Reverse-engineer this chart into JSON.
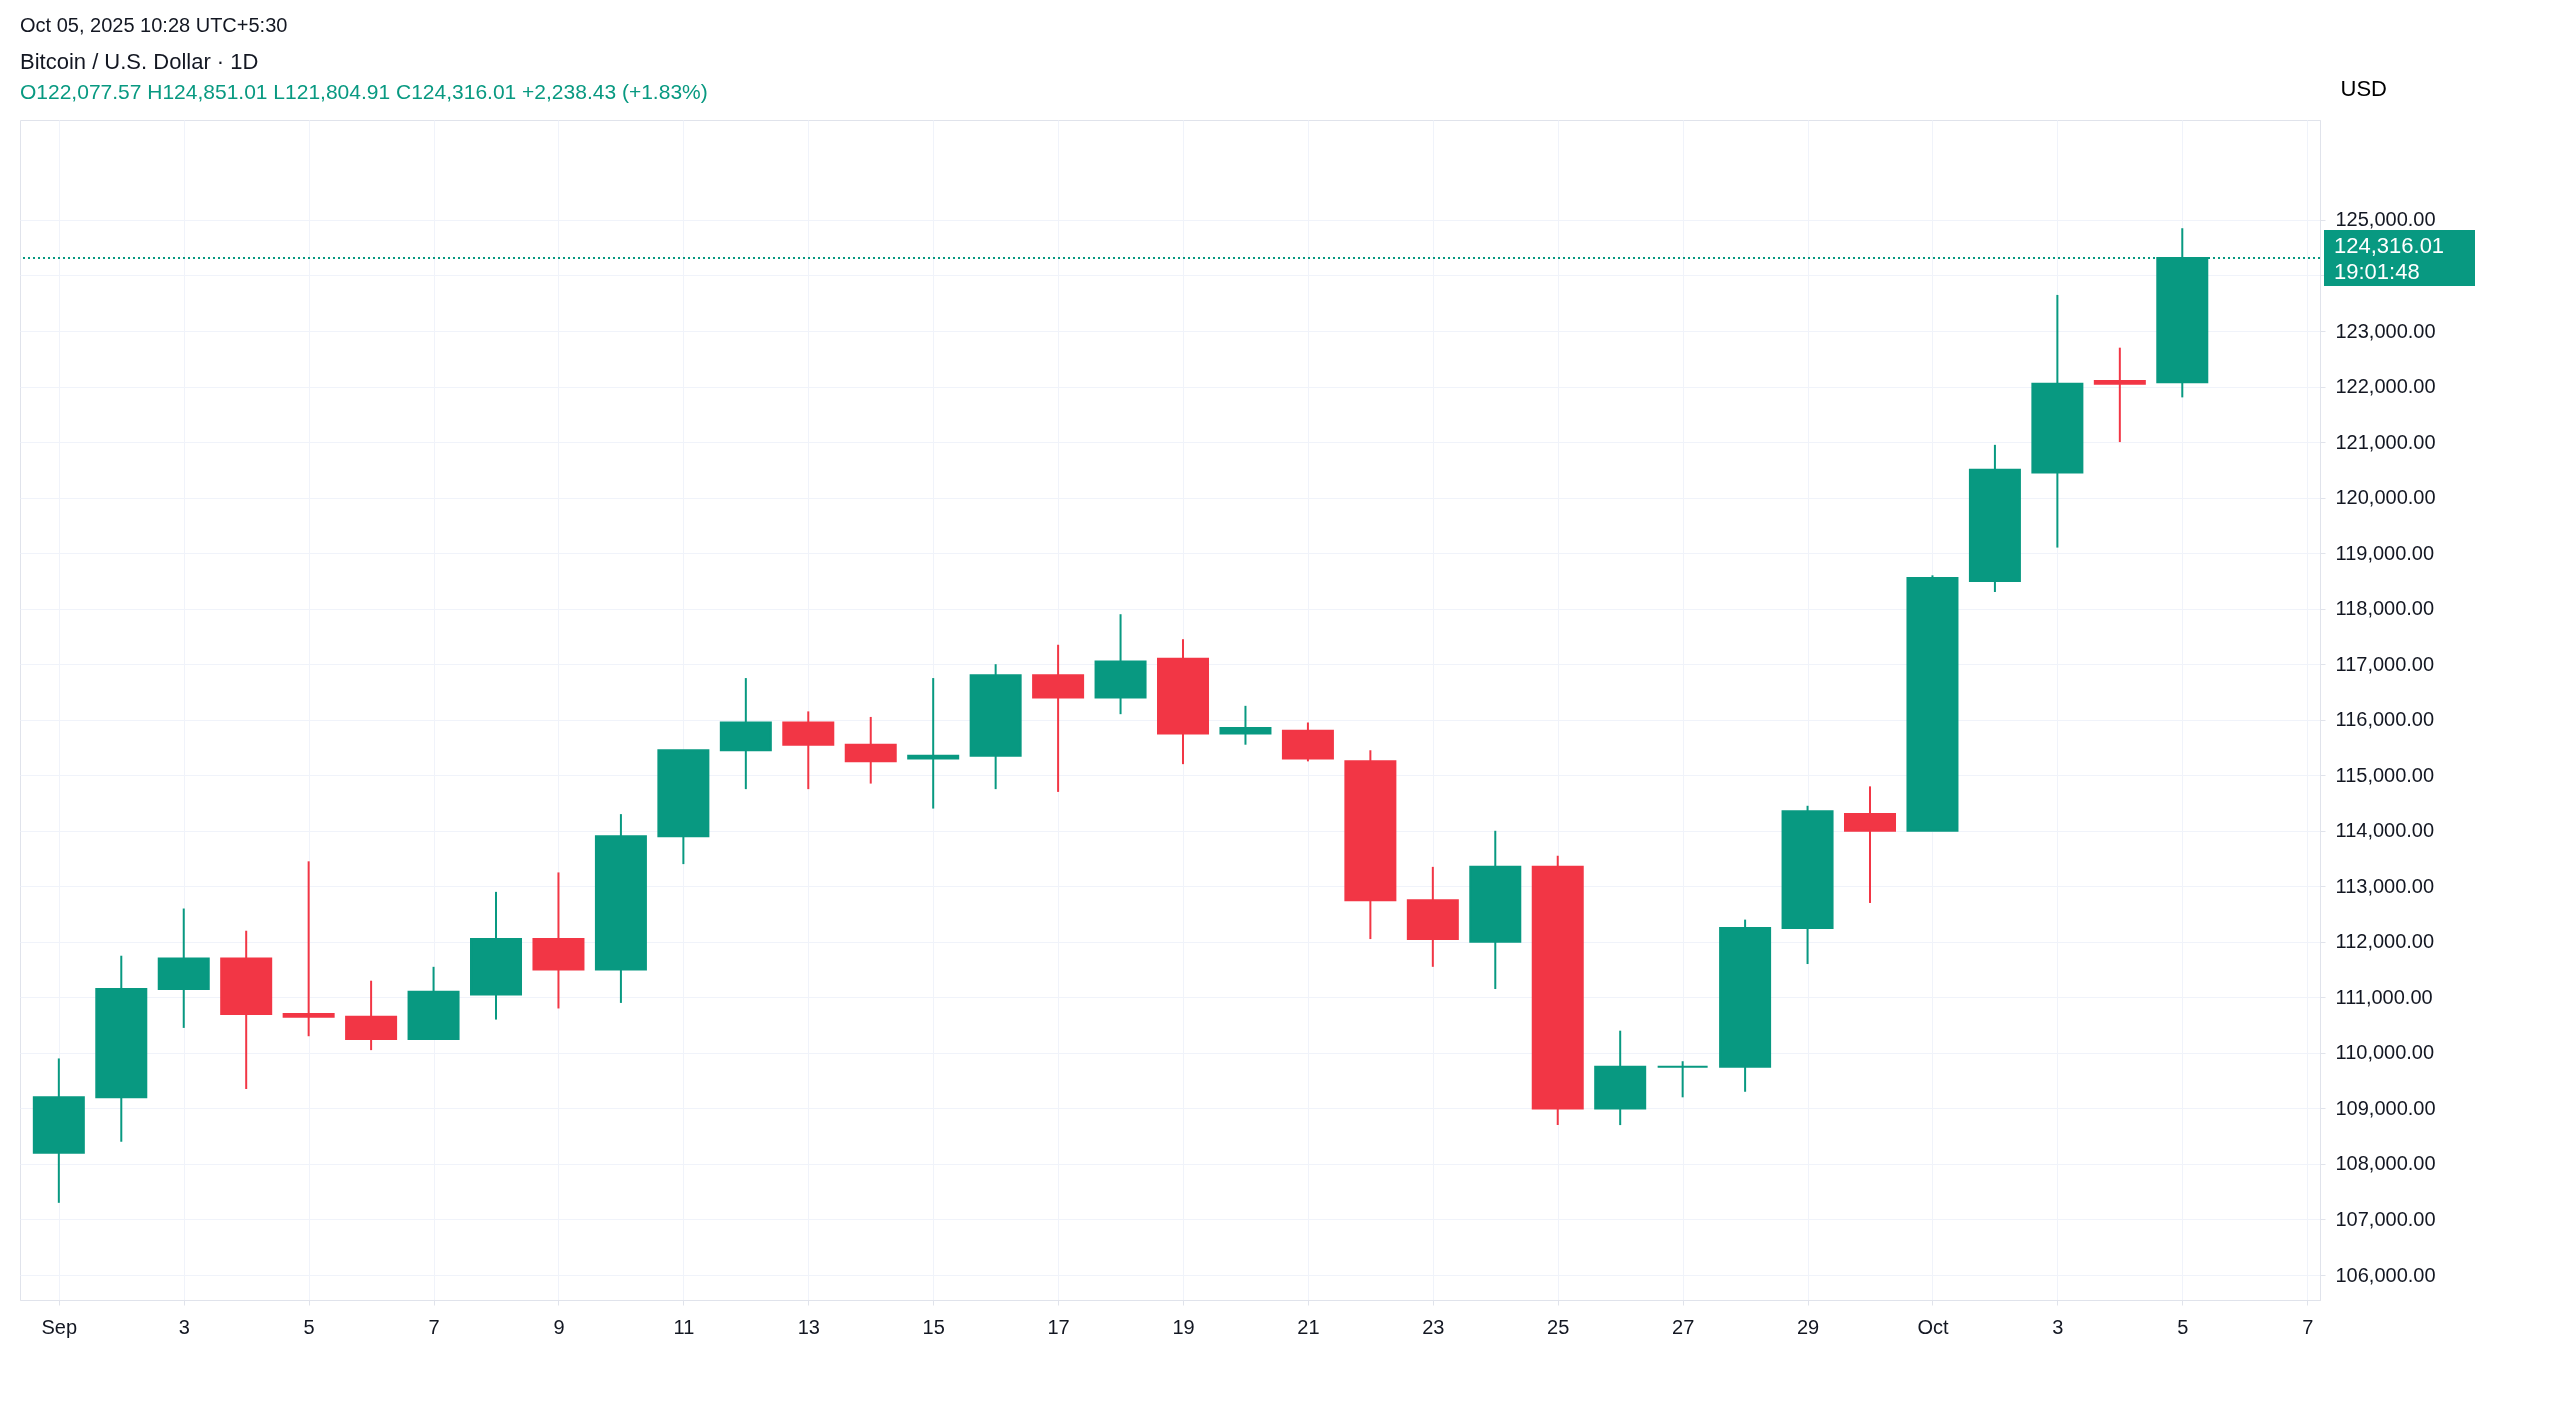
{
  "chart_data": {
    "type": "candlestick",
    "title": "Bitcoin / U.S. Dollar · 1D",
    "subtitle": "O122,077.57 H124,851.01 L121,804.91 C124,316.01 +2,238.43 (+1.83%)",
    "ylabel": "USD",
    "annotations": [
      "Oct 05, 2025 10:28 UTC+5:30",
      "19:01:48"
    ],
    "x": [
      "2025-09-01",
      "2025-09-02",
      "2025-09-03",
      "2025-09-04",
      "2025-09-05",
      "2025-09-06",
      "2025-09-07",
      "2025-09-08",
      "2025-09-09",
      "2025-09-10",
      "2025-09-11",
      "2025-09-12",
      "2025-09-13",
      "2025-09-14",
      "2025-09-15",
      "2025-09-16",
      "2025-09-17",
      "2025-09-18",
      "2025-09-19",
      "2025-09-20",
      "2025-09-21",
      "2025-09-22",
      "2025-09-23",
      "2025-09-24",
      "2025-09-25",
      "2025-09-26",
      "2025-09-27",
      "2025-09-28",
      "2025-09-29",
      "2025-09-30",
      "2025-10-01",
      "2025-10-02",
      "2025-10-03",
      "2025-10-04",
      "2025-10-05"
    ],
    "ohlc": [
      [
        108200,
        109900,
        107300,
        109200
      ],
      [
        109200,
        111750,
        108400,
        111150
      ],
      [
        111150,
        112600,
        110450,
        111700
      ],
      [
        111700,
        112200,
        109350,
        110700
      ],
      [
        110700,
        113450,
        110300,
        110650
      ],
      [
        110650,
        111300,
        110050,
        110250
      ],
      [
        110250,
        111550,
        110250,
        111100
      ],
      [
        111050,
        112900,
        110600,
        112050
      ],
      [
        112050,
        113250,
        110800,
        111500
      ],
      [
        111500,
        114300,
        110900,
        113900
      ],
      [
        113900,
        115450,
        113400,
        115450
      ],
      [
        115450,
        116750,
        114750,
        115950
      ],
      [
        115950,
        116150,
        114750,
        115550
      ],
      [
        115550,
        116050,
        114850,
        115250
      ],
      [
        115300,
        116750,
        114400,
        115350
      ],
      [
        115350,
        117000,
        114750,
        116800
      ],
      [
        116800,
        117350,
        114700,
        116400
      ],
      [
        116400,
        117900,
        116100,
        117050
      ],
      [
        117100,
        117450,
        115200,
        115750
      ],
      [
        115750,
        116250,
        115550,
        115850
      ],
      [
        115800,
        115950,
        115250,
        115300
      ],
      [
        115250,
        115450,
        112050,
        112750
      ],
      [
        112750,
        113350,
        111550,
        112050
      ],
      [
        112000,
        114000,
        111150,
        113350
      ],
      [
        113350,
        113550,
        108700,
        109000
      ],
      [
        109000,
        110400,
        108700,
        109750
      ],
      [
        109750,
        109850,
        109200,
        109750
      ],
      [
        109750,
        112400,
        109300,
        112250
      ],
      [
        112250,
        114450,
        111600,
        114350
      ],
      [
        114300,
        114800,
        112700,
        114000
      ],
      [
        114000,
        118600,
        114000,
        118550
      ],
      [
        118500,
        120950,
        118300,
        120500
      ],
      [
        120450,
        123650,
        119100,
        122050
      ],
      [
        122100,
        122700,
        121000,
        122050
      ],
      [
        122077.57,
        124851.01,
        121804.91,
        124316.01
      ]
    ],
    "colors": [
      "#089981",
      "#089981",
      "#089981",
      "#f23645",
      "#f23645",
      "#f23645",
      "#089981",
      "#089981",
      "#f23645",
      "#089981",
      "#089981",
      "#089981",
      "#f23645",
      "#f23645",
      "#089981",
      "#089981",
      "#f23645",
      "#089981",
      "#f23645",
      "#089981",
      "#f23645",
      "#f23645",
      "#f23645",
      "#089981",
      "#f23645",
      "#089981",
      "#089981",
      "#089981",
      "#089981",
      "#f23645",
      "#089981",
      "#089981",
      "#089981",
      "#f23645",
      "#089981"
    ],
    "xlim": [
      "2025-08-31T11:00",
      "2025-10-07T03:00"
    ],
    "xticks": [
      {
        "value": "2025-09-01",
        "label": "Sep"
      },
      {
        "value": "2025-09-03",
        "label": "3"
      },
      {
        "value": "2025-09-05",
        "label": "5"
      },
      {
        "value": "2025-09-07",
        "label": "7"
      },
      {
        "value": "2025-09-09",
        "label": "9"
      },
      {
        "value": "2025-09-11",
        "label": "11"
      },
      {
        "value": "2025-09-13",
        "label": "13"
      },
      {
        "value": "2025-09-15",
        "label": "15"
      },
      {
        "value": "2025-09-17",
        "label": "17"
      },
      {
        "value": "2025-09-19",
        "label": "19"
      },
      {
        "value": "2025-09-21",
        "label": "21"
      },
      {
        "value": "2025-09-23",
        "label": "23"
      },
      {
        "value": "2025-09-25",
        "label": "25"
      },
      {
        "value": "2025-09-27",
        "label": "27"
      },
      {
        "value": "2025-09-29",
        "label": "29"
      },
      {
        "value": "2025-10-01",
        "label": "Oct"
      },
      {
        "value": "2025-10-03",
        "label": "3"
      },
      {
        "value": "2025-10-05",
        "label": "5"
      },
      {
        "value": "2025-10-07",
        "label": "7"
      }
    ],
    "ylim": [
      105550,
      126800
    ],
    "yticks": [
      {
        "value": 106000,
        "label": "106,000.00"
      },
      {
        "value": 107000,
        "label": "107,000.00"
      },
      {
        "value": 108000,
        "label": "108,000.00"
      },
      {
        "value": 109000,
        "label": "109,000.00"
      },
      {
        "value": 110000,
        "label": "110,000.00"
      },
      {
        "value": 111000,
        "label": "111,000.00"
      },
      {
        "value": 112000,
        "label": "112,000.00"
      },
      {
        "value": 113000,
        "label": "113,000.00"
      },
      {
        "value": 114000,
        "label": "114,000.00"
      },
      {
        "value": 115000,
        "label": "115,000.00"
      },
      {
        "value": 116000,
        "label": "116,000.00"
      },
      {
        "value": 117000,
        "label": "117,000.00"
      },
      {
        "value": 118000,
        "label": "118,000.00"
      },
      {
        "value": 119000,
        "label": "119,000.00"
      },
      {
        "value": 120000,
        "label": "120,000.00"
      },
      {
        "value": 121000,
        "label": "121,000.00"
      },
      {
        "value": 122000,
        "label": "122,000.00"
      },
      {
        "value": 123000,
        "label": "123,000.00"
      },
      {
        "value": 124000,
        "label": null
      },
      {
        "value": 125000,
        "label": "125,000.00"
      }
    ],
    "ref_lines": [
      {
        "axis": "y",
        "value": 124316.01,
        "label": "124,316.01",
        "color": "#089981",
        "line_style": "dotted"
      }
    ],
    "grid": true
  }
}
